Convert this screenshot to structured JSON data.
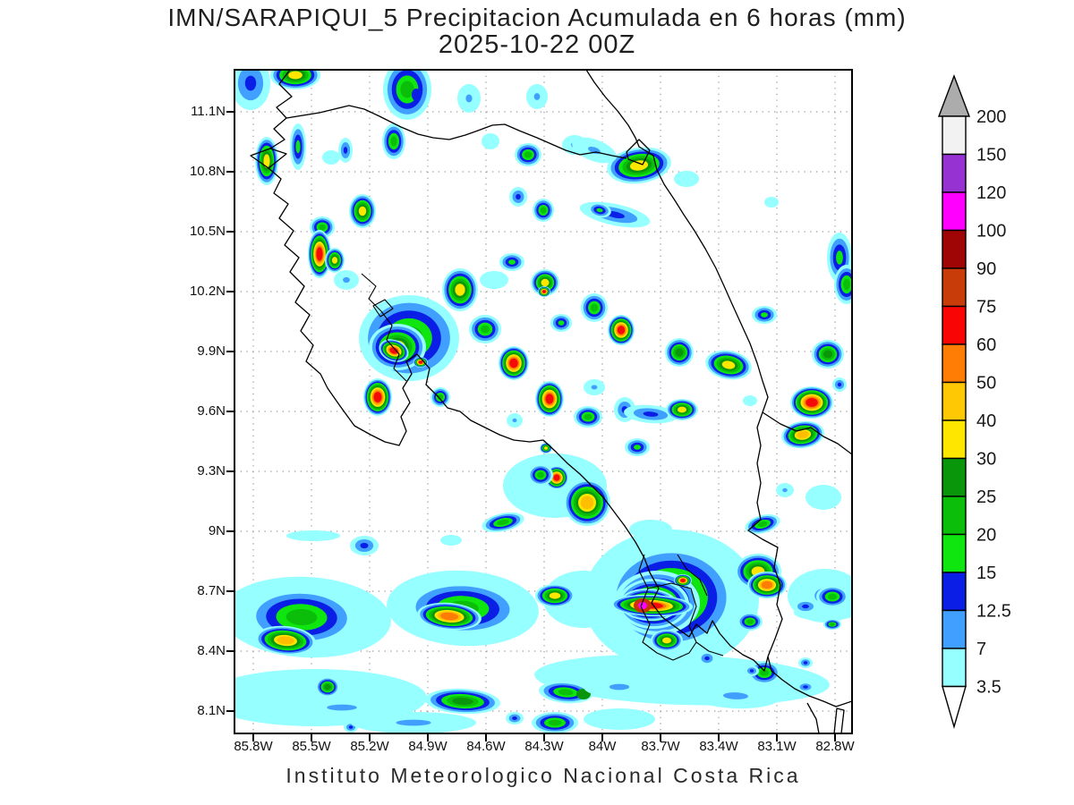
{
  "title": {
    "line1": "IMN/SARAPIQUI_5 Precipitacion Acumulada en 6 horas (mm)",
    "line2": "2025-10-22 00Z"
  },
  "footer": "Instituto Meteorologico Nacional Costa Rica",
  "axes": {
    "lat_labels": [
      "11.1N",
      "10.8N",
      "10.5N",
      "10.2N",
      "9.9N",
      "9.6N",
      "9.3N",
      "9N",
      "8.7N",
      "8.4N",
      "8.1N"
    ],
    "lon_labels": [
      "85.8W",
      "85.5W",
      "85.2W",
      "84.9W",
      "84.6W",
      "84.3W",
      "84W",
      "83.7W",
      "83.4W",
      "83.1W",
      "82.8W"
    ]
  },
  "colorbar": {
    "arrow_top_color": "#ACACAC",
    "arrow_bottom_color": "#FFFFFF",
    "bottom_label": "3.5",
    "segments_top_to_bottom": [
      {
        "color": "#F2F2F2",
        "top_label": "200"
      },
      {
        "color": "#9632D2",
        "top_label": "150"
      },
      {
        "color": "#FF00FF",
        "top_label": "120"
      },
      {
        "color": "#A00505",
        "top_label": "100"
      },
      {
        "color": "#C83C0A",
        "top_label": "90"
      },
      {
        "color": "#FA0505",
        "top_label": "75"
      },
      {
        "color": "#FF7D05",
        "top_label": "60"
      },
      {
        "color": "#FFC805",
        "top_label": "50"
      },
      {
        "color": "#FFE600",
        "top_label": "40"
      },
      {
        "color": "#0A960A",
        "top_label": "30"
      },
      {
        "color": "#0ABE0A",
        "top_label": "25"
      },
      {
        "color": "#0FE60F",
        "top_label": "20"
      },
      {
        "color": "#0A1EE6",
        "top_label": "15"
      },
      {
        "color": "#41A0FF",
        "top_label": "12.5"
      },
      {
        "color": "#96FFFF",
        "top_label": "7"
      }
    ]
  },
  "chart_data": {
    "type": "heatmap",
    "title": "IMN/SARAPIQUI_5 Precipitacion Acumulada en 6 horas (mm)",
    "valid_time": "2025-10-22 00Z",
    "units": "mm",
    "source": "Instituto Meteorologico Nacional Costa Rica",
    "levels_mm": [
      3.5,
      7,
      12.5,
      15,
      20,
      25,
      30,
      40,
      50,
      60,
      75,
      90,
      100,
      120,
      150,
      200
    ],
    "level_palette": [
      "#96FFFF",
      "#41A0FF",
      "#0A1EE6",
      "#0FE60F",
      "#0ABE0A",
      "#0A960A",
      "#FFE600",
      "#FFBE00",
      "#FF7D05",
      "#F50A0A",
      "#C83205",
      "#FF00FF"
    ],
    "lat_ticks": [
      11.1,
      10.8,
      10.5,
      10.2,
      9.9,
      9.6,
      9.3,
      9.0,
      8.7,
      8.4,
      8.1
    ],
    "lon_ticks": [
      -85.8,
      -85.5,
      -85.2,
      -84.9,
      -84.6,
      -84.3,
      -84.0,
      -83.7,
      -83.4,
      -83.1,
      -82.8
    ],
    "grid_on": true,
    "cell_format": "[x_px, y_px, rx, ry, rotation_deg, max_level_index(1=3.5mm..12=100+mm), solid_flag]",
    "cells": [
      [
        80,
        612,
        95,
        45,
        3,
        2
      ],
      [
        255,
        602,
        85,
        42,
        3,
        2
      ],
      [
        488,
        592,
        98,
        78,
        0,
        2
      ],
      [
        390,
        592,
        45,
        32,
        0,
        1
      ],
      [
        500,
        682,
        165,
        28,
        2,
        1
      ],
      [
        90,
        702,
        125,
        32,
        0,
        1
      ],
      [
        358,
        465,
        58,
        36,
        0,
        1
      ],
      [
        660,
        588,
        42,
        30,
        0,
        2
      ],
      [
        465,
        514,
        24,
        11,
        0,
        1
      ],
      [
        88,
        521,
        30,
        6,
        0,
        1
      ],
      [
        660,
        607,
        35,
        9,
        0,
        1
      ],
      [
        18,
        15,
        22,
        30,
        0,
        3
      ],
      [
        68,
        6,
        28,
        16,
        0,
        7
      ],
      [
        193,
        22,
        27,
        34,
        0,
        5
      ],
      [
        203,
        28,
        5,
        7,
        0,
        3,
        1
      ],
      [
        262,
        32,
        13,
        16,
        0,
        2
      ],
      [
        338,
        30,
        12,
        14,
        0,
        2
      ],
      [
        286,
        80,
        10,
        9,
        0,
        1
      ],
      [
        178,
        80,
        13,
        20,
        0,
        5
      ],
      [
        328,
        95,
        15,
        13,
        0,
        5
      ],
      [
        380,
        84,
        14,
        11,
        0,
        2
      ],
      [
        36,
        102,
        13,
        27,
        0,
        7
      ],
      [
        71,
        86,
        9,
        26,
        0,
        4
      ],
      [
        124,
        90,
        8,
        14,
        0,
        3
      ],
      [
        108,
        98,
        10,
        8,
        0,
        1
      ],
      [
        452,
        107,
        36,
        20,
        -8,
        7
      ],
      [
        402,
        90,
        26,
        12,
        20,
        2
      ],
      [
        505,
        122,
        14,
        9,
        0,
        1
      ],
      [
        425,
        162,
        40,
        12,
        12,
        3
      ],
      [
        408,
        157,
        13,
        8,
        12,
        4
      ],
      [
        600,
        148,
        8,
        6,
        0,
        1
      ],
      [
        676,
        210,
        14,
        28,
        0,
        4
      ],
      [
        143,
        158,
        15,
        19,
        0,
        7
      ],
      [
        317,
        142,
        10,
        11,
        0,
        3
      ],
      [
        345,
        157,
        12,
        13,
        0,
        5
      ],
      [
        98,
        176,
        14,
        12,
        0,
        5
      ],
      [
        95,
        206,
        13,
        27,
        0,
        10
      ],
      [
        112,
        213,
        11,
        14,
        0,
        7
      ],
      [
        125,
        235,
        14,
        11,
        0,
        2
      ],
      [
        252,
        246,
        20,
        24,
        0,
        7
      ],
      [
        195,
        300,
        56,
        48,
        0,
        5
      ],
      [
        182,
        310,
        32,
        26,
        0,
        7
      ],
      [
        178,
        314,
        17,
        12,
        20,
        10
      ],
      [
        208,
        327,
        8,
        6,
        0,
        10
      ],
      [
        160,
        366,
        16,
        21,
        0,
        10
      ],
      [
        230,
        366,
        11,
        11,
        0,
        5
      ],
      [
        280,
        290,
        18,
        16,
        0,
        5
      ],
      [
        312,
        328,
        17,
        19,
        0,
        10
      ],
      [
        347,
        238,
        16,
        15,
        0,
        7
      ],
      [
        346,
        248,
        7,
        6,
        0,
        10
      ],
      [
        310,
        215,
        14,
        10,
        0,
        4
      ],
      [
        290,
        235,
        16,
        10,
        0,
        1
      ],
      [
        352,
        368,
        16,
        20,
        0,
        10
      ],
      [
        402,
        266,
        15,
        16,
        0,
        5
      ],
      [
        432,
        291,
        15,
        17,
        0,
        10
      ],
      [
        497,
        316,
        16,
        16,
        0,
        6
      ],
      [
        552,
        330,
        26,
        16,
        10,
        7
      ],
      [
        592,
        274,
        14,
        10,
        0,
        4
      ],
      [
        663,
        318,
        18,
        16,
        0,
        6
      ],
      [
        676,
        352,
        8,
        8,
        0,
        3
      ],
      [
        645,
        372,
        24,
        18,
        0,
        10
      ],
      [
        635,
        408,
        24,
        15,
        -8,
        8
      ],
      [
        684,
        240,
        14,
        22,
        0,
        5
      ],
      [
        576,
        370,
        8,
        6,
        0,
        1
      ],
      [
        615,
        470,
        10,
        8,
        0,
        2
      ],
      [
        658,
        478,
        20,
        14,
        0,
        1
      ],
      [
        402,
        355,
        12,
        9,
        0,
        2
      ],
      [
        365,
        283,
        12,
        10,
        0,
        4
      ],
      [
        436,
        380,
        12,
        14,
        0,
        3
      ],
      [
        395,
        388,
        16,
        12,
        0,
        5
      ],
      [
        465,
        385,
        30,
        10,
        5,
        3
      ],
      [
        450,
        422,
        14,
        10,
        0,
        4
      ],
      [
        500,
        380,
        18,
        12,
        0,
        7
      ],
      [
        360,
        456,
        13,
        13,
        0,
        10
      ],
      [
        394,
        484,
        26,
        26,
        0,
        8
      ],
      [
        342,
        453,
        14,
        12,
        0,
        5
      ],
      [
        313,
        392,
        9,
        8,
        0,
        2
      ],
      [
        348,
        423,
        7,
        6,
        0,
        7
      ],
      [
        590,
        508,
        20,
        10,
        -15,
        5
      ],
      [
        300,
        506,
        24,
        10,
        -12,
        5
      ],
      [
        242,
        526,
        12,
        6,
        0,
        1
      ],
      [
        145,
        532,
        16,
        11,
        0,
        3
      ],
      [
        75,
        612,
        62,
        32,
        2,
        5
      ],
      [
        57,
        638,
        34,
        16,
        5,
        8
      ],
      [
        104,
        690,
        13,
        11,
        0,
        6
      ],
      [
        255,
        602,
        64,
        30,
        2,
        5
      ],
      [
        240,
        611,
        36,
        15,
        5,
        9
      ],
      [
        358,
        588,
        22,
        13,
        0,
        7
      ],
      [
        488,
        590,
        72,
        58,
        0,
        6
      ],
      [
        472,
        596,
        48,
        36,
        0,
        7
      ],
      [
        468,
        597,
        40,
        28,
        0,
        8
      ],
      [
        463,
        598,
        33,
        18,
        3,
        9
      ],
      [
        466,
        599,
        46,
        12,
        2,
        10
      ],
      [
        456,
        599,
        10,
        8,
        0,
        11,
        1
      ],
      [
        456,
        599,
        5,
        4,
        0,
        12,
        1
      ],
      [
        501,
        571,
        10,
        7,
        0,
        10
      ],
      [
        483,
        638,
        18,
        12,
        0,
        7
      ],
      [
        585,
        561,
        26,
        20,
        0,
        7
      ],
      [
        595,
        576,
        22,
        15,
        0,
        9
      ],
      [
        576,
        617,
        14,
        10,
        0,
        5
      ],
      [
        638,
        600,
        14,
        8,
        0,
        3
      ],
      [
        668,
        620,
        10,
        6,
        0,
        5
      ],
      [
        592,
        674,
        18,
        13,
        0,
        5
      ],
      [
        638,
        690,
        10,
        6,
        0,
        3
      ],
      [
        668,
        589,
        18,
        12,
        0,
        5
      ],
      [
        370,
        696,
        30,
        12,
        5,
        5
      ],
      [
        390,
        698,
        8,
        6,
        0,
        6,
        1
      ],
      [
        430,
        690,
        40,
        12,
        0,
        2
      ],
      [
        560,
        700,
        50,
        14,
        2,
        2
      ],
      [
        528,
        658,
        10,
        8,
        0,
        3
      ],
      [
        578,
        672,
        8,
        6,
        0,
        3
      ],
      [
        638,
        663,
        8,
        6,
        0,
        3
      ],
      [
        255,
        706,
        42,
        14,
        3,
        6
      ],
      [
        120,
        713,
        60,
        12,
        0,
        2
      ],
      [
        130,
        735,
        8,
        6,
        0,
        3
      ],
      [
        200,
        730,
        70,
        12,
        0,
        2
      ],
      [
        358,
        730,
        26,
        12,
        0,
        5
      ],
      [
        313,
        725,
        10,
        7,
        0,
        3
      ],
      [
        430,
        726,
        40,
        12,
        0,
        1
      ]
    ],
    "coast_paths": [
      "M62,0 L50,16 L64,30 L47,42 L58,54 L44,66 L56,78 L40,88",
      "M40,88 L18,96 L38,110 L58,94 L40,88 Z",
      "M58,54 L95,48 L128,40 L145,44 L162,52 L186,64 L205,72 L222,76 L240,78 L258,73 L272,68 L288,62 L302,61 L318,68 L338,76 L354,83 L370,90 L386,95 L404,92 L422,96 L438,99",
      "M438,92 L452,78 L464,90 L456,106 L440,100 L438,92 Z",
      "M393,0 L402,14 L414,30 L428,46 L440,62 L448,76 L452,86 L468,96 L472,112 L480,128 L492,146 L502,162 L514,180 L526,200 L538,222 L548,244 L556,262 L566,284 L576,306 L584,328 L590,348 L596,366 L590,383",
      "M590,383 L610,396 L628,404 L644,400 L658,410 L674,418 L690,430",
      "M590,383 L584,400 L588,420 L584,440 L588,462 L584,484 L588,503 L574,515 L590,525 L607,534 L603,556 L610,576 L606,598 L612,614 L604,636 L596,656",
      "M38,110 L52,122 L44,138 L60,150 L50,166 L66,180 L56,196 L72,210 L62,226 L78,242 L68,260 L84,274 L74,292 L88,308 L80,326 L96,340 L104,356 L118,376 L134,398 L152,408 L168,416 L184,420 L192,404 L186,388 L196,372 L188,356 L198,340 L192,326 L204,318 L218,334 L214,352 L228,366 L238,378 L252,382 L264,392 L280,400 L296,408 L312,414 L330,416 L345,414 L358,426 L372,440 L386,452 L398,464 L412,478 L424,494 L436,510 L448,528 L458,546 L464,562 L474,580 L466,596 L478,612 L494,624 L508,634 L516,620 L528,630 L534,616 L542,630 L554,644 L568,654 L580,660 L592,672 L596,656",
      "M596,656 L600,672 L612,682 L626,692 L642,700 L658,706 L672,712 L690,706",
      "M640,708 L650,726 L653,742",
      "M670,742 L673,714 L681,716 L678,742"
    ],
    "basin_paths": [
      "M155,264 L168,257 L177,267 L163,276 Z",
      "M142,228 L158,242 L150,256 L164,270 L176,286 L170,302 L184,318 L178,334 L192,348",
      "M458,542 L452,560 L462,580 L454,600 L464,620 L456,640 L472,652 L490,660 L508,652 L516,640 L508,622 L516,600 L510,580 L488,574 L462,580",
      "M495,542 L505,558 L520,570 L528,588",
      "M516,640 L530,650 L546,655"
    ]
  }
}
